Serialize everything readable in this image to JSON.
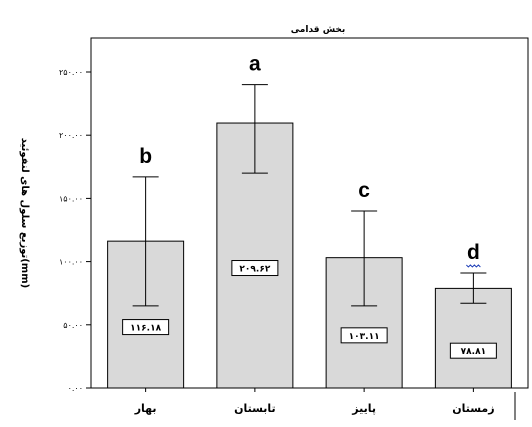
{
  "chart_data": {
    "type": "bar",
    "title": "بخش قدامی",
    "ylabel": "توزیع سلول های لنفوئید(mm)",
    "xlabel": "",
    "ylim": [
      0,
      250
    ],
    "y_ticks": [
      0,
      50,
      100,
      150,
      200,
      250
    ],
    "y_tick_labels": [
      "۰.۰۰",
      "۵۰.۰۰",
      "۱۰۰.۰۰",
      "۱۵۰.۰۰",
      "۲۰۰.۰۰",
      "۲۵۰.۰۰"
    ],
    "categories": [
      "بهار",
      "تابستان",
      "پاییز",
      "زمستان"
    ],
    "values": [
      116.18,
      209.62,
      103.11,
      78.81
    ],
    "value_labels": [
      "۱۱۶.۱۸",
      "۲۰۹.۶۲",
      "۱۰۳.۱۱",
      "۷۸.۸۱"
    ],
    "error_low": [
      65,
      170,
      65,
      67
    ],
    "error_high": [
      167,
      240,
      140,
      91
    ],
    "letters": [
      "b",
      "a",
      "c",
      "d"
    ],
    "letter_colors": [
      "#000000",
      "#000000",
      "#000000",
      "#1f3fb8"
    ],
    "bar_color": "#d9d9d9",
    "grid": false
  }
}
